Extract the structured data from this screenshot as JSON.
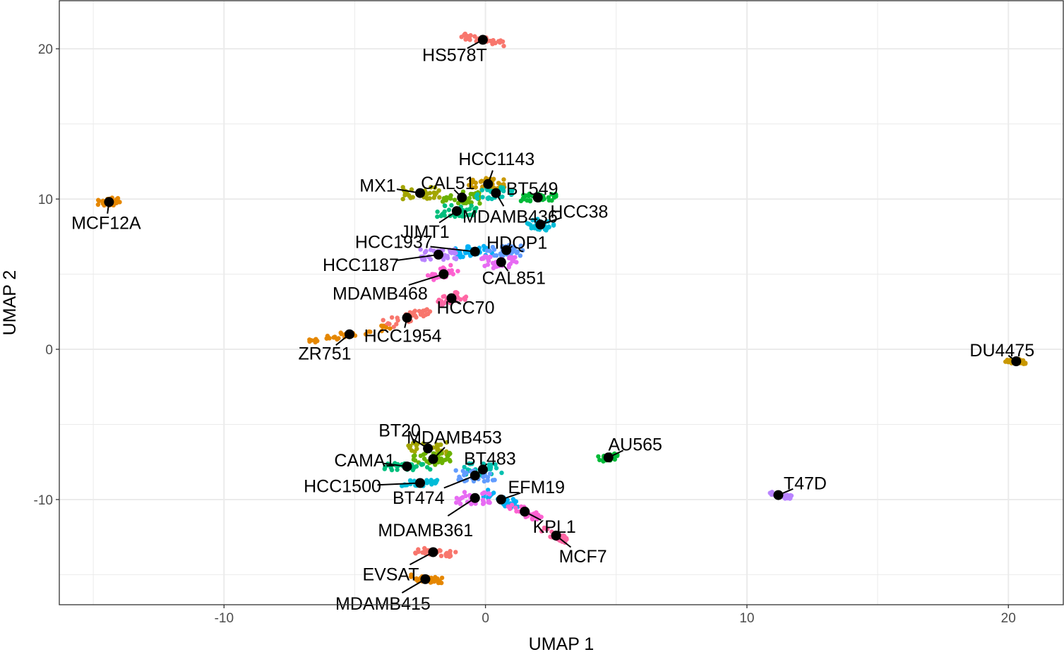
{
  "chart_data": {
    "type": "scatter",
    "xlabel": "UMAP 1",
    "ylabel": "UMAP 2",
    "xlim": [
      -16.3,
      22.1
    ],
    "ylim": [
      -17.0,
      23.2
    ],
    "x_ticks": [
      -10,
      0,
      10,
      20
    ],
    "y_ticks": [
      -10,
      0,
      10,
      20
    ],
    "x_tick_labels": [
      "-10",
      "0",
      "10",
      "20"
    ],
    "y_tick_labels": [
      "-10",
      "0",
      "10",
      "20"
    ],
    "grid": true,
    "legend": "none",
    "cell_line_centroids": [
      {
        "label": "HS578T",
        "x": -0.1,
        "y": 20.6
      },
      {
        "label": "MCF12A",
        "x": -14.4,
        "y": 9.8
      },
      {
        "label": "HCC1143",
        "x": 0.1,
        "y": 11.0
      },
      {
        "label": "MX1",
        "x": -2.5,
        "y": 10.4
      },
      {
        "label": "CAL51",
        "x": -0.9,
        "y": 10.1
      },
      {
        "label": "BT549",
        "x": 2.0,
        "y": 10.1
      },
      {
        "label": "JIMT1",
        "x": -1.1,
        "y": 9.2
      },
      {
        "label": "MDAMB436",
        "x": 0.4,
        "y": 10.4
      },
      {
        "label": "HCC38",
        "x": 2.1,
        "y": 8.3
      },
      {
        "label": "HCC1937",
        "x": -0.4,
        "y": 6.5
      },
      {
        "label": "HDQP1",
        "x": 0.8,
        "y": 6.6
      },
      {
        "label": "HCC1187",
        "x": -1.8,
        "y": 6.3
      },
      {
        "label": "CAL851",
        "x": 0.6,
        "y": 5.8
      },
      {
        "label": "MDAMB468",
        "x": -1.6,
        "y": 5.0
      },
      {
        "label": "HCC70",
        "x": -1.3,
        "y": 3.4
      },
      {
        "label": "HCC1954",
        "x": -3.0,
        "y": 2.1
      },
      {
        "label": "ZR751",
        "x": -5.2,
        "y": 1.0
      },
      {
        "label": "DU4475",
        "x": 20.3,
        "y": -0.8
      },
      {
        "label": "BT20",
        "x": -2.2,
        "y": -6.6
      },
      {
        "label": "MDAMB453",
        "x": -2.0,
        "y": -7.3
      },
      {
        "label": "AU565",
        "x": 4.7,
        "y": -7.2
      },
      {
        "label": "CAMA1",
        "x": -3.0,
        "y": -7.8
      },
      {
        "label": "BT483",
        "x": -0.1,
        "y": -8.0
      },
      {
        "label": "HCC1500",
        "x": -2.5,
        "y": -8.9
      },
      {
        "label": "EFM19",
        "x": 0.6,
        "y": -10.0
      },
      {
        "label": "BT474",
        "x": -0.4,
        "y": -8.4
      },
      {
        "label": "T47D",
        "x": 11.2,
        "y": -9.7
      },
      {
        "label": "MDAMB361",
        "x": -0.4,
        "y": -9.9
      },
      {
        "label": "KPL1",
        "x": 1.5,
        "y": -10.8
      },
      {
        "label": "MCF7",
        "x": 2.7,
        "y": -12.4
      },
      {
        "label": "EVSAT",
        "x": -2.0,
        "y": -13.5
      },
      {
        "label": "MDAMB415",
        "x": -2.3,
        "y": -15.3
      }
    ]
  },
  "colors": {
    "palette": [
      "#F8766D",
      "#E58700",
      "#C99800",
      "#A3A500",
      "#6BB100",
      "#00BA38",
      "#00BF7D",
      "#00C0AF",
      "#00BCD8",
      "#00B0F6",
      "#619CFF",
      "#B983FF",
      "#E76BF3",
      "#FD61D1",
      "#FF67A4"
    ],
    "centroid": "#000000",
    "grid": "#ebebeb",
    "panel_border": "#333333"
  }
}
